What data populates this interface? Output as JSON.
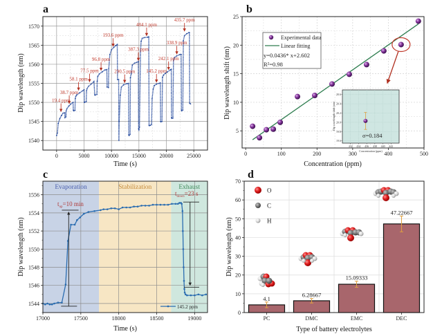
{
  "chart_data": [
    {
      "id": "a",
      "type": "line",
      "panel_label": "a",
      "xlabel": "Time (s)",
      "ylabel": "Dip wavelength (nm)",
      "xlim": [
        -2500,
        27500
      ],
      "ylim": [
        1537.5,
        1572.5
      ],
      "xticks": [
        0,
        5000,
        10000,
        15000,
        20000,
        25000
      ],
      "yticks": [
        1540,
        1545,
        1550,
        1555,
        1560,
        1565,
        1570
      ],
      "grid": true,
      "line_color": "#2b4fa0",
      "annotation_color": "#c0392b",
      "series": [
        {
          "name": "dip wavelength",
          "x": [
            0,
            150,
            300,
            600,
            900,
            1200,
            1500,
            1520,
            1700,
            1750,
            1900,
            2200,
            2600,
            3000,
            3050,
            3100,
            3350,
            3400,
            3500,
            3700,
            4200,
            4700,
            5000,
            5050,
            5100,
            5400,
            5450,
            5550,
            5800,
            6300,
            6800,
            6950,
            7000,
            7350,
            7400,
            7500,
            7800,
            8300,
            8800,
            9150,
            9200,
            9450,
            9500,
            9700,
            10000,
            10400,
            10800,
            11050,
            11100,
            11300,
            11350,
            11400,
            11600,
            11800,
            12200,
            12800,
            13100,
            13150,
            13200,
            13400,
            13450,
            13600,
            13800,
            14200,
            14600,
            14900,
            14950,
            15000,
            15100,
            15300,
            15400,
            15600,
            16000,
            16600,
            16800,
            16850,
            16900,
            17100,
            17300,
            17400,
            17600,
            17800,
            18200,
            18700,
            18900,
            18950,
            19000,
            19200,
            19300,
            19500,
            19800,
            20200,
            20700,
            20900,
            20950,
            21000,
            21200,
            21300,
            21500,
            21900,
            22400,
            22700,
            22750,
            22800,
            23000,
            23100,
            23300,
            23700,
            24100,
            24200,
            24250,
            24400
          ],
          "y": [
            1541.3,
            1542.0,
            1544.5,
            1545.8,
            1546.6,
            1547.2,
            1547.3,
            1546.0,
            1546.2,
            1547.8,
            1548.4,
            1549.0,
            1549.6,
            1550.0,
            1548.0,
            1547.8,
            1547.9,
            1551.0,
            1551.6,
            1552.0,
            1552.5,
            1553.0,
            1553.3,
            1550.0,
            1550.0,
            1550.2,
            1553.0,
            1553.6,
            1554.2,
            1554.8,
            1555.5,
            1552.0,
            1551.9,
            1552.1,
            1555.5,
            1556.8,
            1557.5,
            1558.0,
            1558.5,
            1558.6,
            1554.0,
            1553.9,
            1558.8,
            1562.5,
            1563.8,
            1564.4,
            1564.9,
            1565.2,
            1556.0,
            1556.0,
            1540.0,
            1545.0,
            1551.8,
            1554.0,
            1554.6,
            1554.9,
            1555.0,
            1541.5,
            1541.3,
            1541.6,
            1556.5,
            1557.5,
            1559.8,
            1560.3,
            1560.5,
            1560.7,
            1543.0,
            1542.8,
            1543.5,
            1563.5,
            1566.0,
            1566.8,
            1567.0,
            1567.1,
            1567.2,
            1544.0,
            1543.9,
            1544.0,
            1544.2,
            1551.0,
            1553.5,
            1554.4,
            1554.8,
            1555.0,
            1555.1,
            1545.0,
            1544.9,
            1545.0,
            1556.6,
            1557.2,
            1557.6,
            1558.0,
            1558.5,
            1558.7,
            1546.0,
            1545.8,
            1545.9,
            1561.0,
            1561.8,
            1562.2,
            1562.5,
            1562.6,
            1548.0,
            1547.8,
            1548.0,
            1566.2,
            1567.5,
            1568.0,
            1568.3,
            1568.3,
            1549.8,
            1549.6
          ]
        }
      ],
      "annotations": [
        {
          "text": "19.4 ppm",
          "x": 800,
          "y": 1547.2
        },
        {
          "text": "38.7 ppm",
          "x": 2300,
          "y": 1549.3
        },
        {
          "text": "58.1 ppm",
          "x": 4000,
          "y": 1552.8
        },
        {
          "text": "77.5 ppm",
          "x": 6000,
          "y": 1555.0
        },
        {
          "text": "96.8 ppm",
          "x": 8100,
          "y": 1558.0
        },
        {
          "text": "193.6 ppm",
          "x": 10300,
          "y": 1564.3
        },
        {
          "text": "290.5 ppm",
          "x": 12400,
          "y": 1554.8
        },
        {
          "text": "387.3 ppm",
          "x": 14900,
          "y": 1560.6
        },
        {
          "text": "484.1 ppm",
          "x": 16400,
          "y": 1567.1
        },
        {
          "text": "145.2 ppm",
          "x": 18200,
          "y": 1554.9
        },
        {
          "text": "242.1 ppm",
          "x": 20400,
          "y": 1558.2
        },
        {
          "text": "338.9 ppm",
          "x": 21900,
          "y": 1562.3
        },
        {
          "text": "435.7 ppm",
          "x": 23300,
          "y": 1568.3
        }
      ]
    },
    {
      "id": "b",
      "type": "scatter",
      "panel_label": "b",
      "xlabel": "Concentration (ppm)",
      "ylabel": "Dip wavelength shift (nm)",
      "xlim": [
        -10,
        500
      ],
      "ylim": [
        2,
        25
      ],
      "xticks": [
        0,
        100,
        200,
        300,
        400,
        500
      ],
      "yticks": [
        5,
        10,
        15,
        20,
        25
      ],
      "grid": true,
      "legend_position": "top-left",
      "legend": [
        "Experimental data",
        "Linear fitting"
      ],
      "fit_equation": "y=0.0436* x+2.602",
      "r_squared": "R²=0.98",
      "fit": {
        "slope": 0.0436,
        "intercept": 2.602,
        "x_range": [
          19.4,
          484.1
        ],
        "color": "#2e7d4f"
      },
      "point_color": "#7b2a8c",
      "series": [
        {
          "name": "Experimental data",
          "x": [
            19.4,
            38.7,
            58.1,
            77.5,
            96.8,
            145.2,
            193.6,
            242.1,
            290.5,
            338.9,
            387.3,
            435.7,
            484.1
          ],
          "y": [
            5.8,
            3.8,
            5.2,
            5.3,
            6.5,
            11.0,
            11.2,
            13.2,
            14.9,
            16.6,
            19.0,
            20.1,
            24.2
          ]
        }
      ],
      "highlight": {
        "x": 435.7,
        "y": 20.1,
        "color": "#c0392b"
      },
      "inset": {
        "xlabel": "Concentration (ppm)",
        "ylabel": "Dip wavelength shift (nm)",
        "xticks": [
          432,
          434,
          436,
          438,
          440,
          442
        ],
        "yticks": [
          19.6,
          19.8,
          20.0,
          20.2,
          20.4,
          20.6
        ],
        "xlim": [
          430,
          444
        ],
        "ylim": [
          19.55,
          20.7
        ],
        "point": {
          "x": 435.7,
          "y": 20.03,
          "error": 0.184
        },
        "sigma_label": "σ=0.184",
        "background": "#cfe6e2"
      }
    },
    {
      "id": "c",
      "type": "line",
      "panel_label": "c",
      "xlabel": "Time (s)",
      "ylabel": "Dip wavelength (nm)",
      "xlim": [
        17000,
        19170
      ],
      "ylim": [
        1543.0,
        1557.5
      ],
      "xticks": [
        17000,
        17500,
        18000,
        18500,
        19000
      ],
      "yticks": [
        1544,
        1546,
        1548,
        1550,
        1552,
        1554,
        1556
      ],
      "grid": true,
      "legend_position": "bottom-right",
      "legend": [
        "145.2 ppm"
      ],
      "line_color": "#2a6cb0",
      "regions": [
        {
          "label": "Evaporation",
          "x0": 17000,
          "x1": 17740,
          "color": "#c8d3e6",
          "text_color": "#4a5fae"
        },
        {
          "label": "Stabilization",
          "x0": 17740,
          "x1": 18690,
          "color": "#f7e6c4",
          "text_color": "#c58a3a"
        },
        {
          "label": "Exhaust",
          "x0": 18690,
          "x1": 19170,
          "color": "#cfe7de",
          "text_color": "#3e8a5a"
        }
      ],
      "annotations": [
        {
          "text": "t_up=10 min",
          "main": "t",
          "sub": "up",
          "rest": "=10 min"
        },
        {
          "text": "t_down=23 s",
          "main": "t",
          "sub": "down",
          "rest": "=23 s"
        }
      ],
      "series": [
        {
          "name": "145.2 ppm",
          "x": [
            17000,
            17030,
            17060,
            17090,
            17120,
            17150,
            17200,
            17250,
            17300,
            17330,
            17370,
            17420,
            17450,
            17490,
            17540,
            17600,
            17680,
            17760,
            17800,
            17850,
            17900,
            17950,
            18000,
            18050,
            18100,
            18150,
            18200,
            18250,
            18300,
            18350,
            18400,
            18450,
            18500,
            18550,
            18600,
            18650,
            18700,
            18750,
            18780,
            18800,
            18820,
            18830,
            18840,
            18845,
            18850,
            18855,
            18860,
            18865,
            18870,
            18880,
            18900,
            18950,
            19000,
            19050,
            19100,
            19150
          ],
          "y": [
            1544.0,
            1543.9,
            1544.0,
            1543.9,
            1543.9,
            1544.0,
            1544.1,
            1544.1,
            1546.1,
            1550.9,
            1552.7,
            1552.7,
            1553.2,
            1553.5,
            1553.9,
            1554.1,
            1554.2,
            1554.3,
            1554.4,
            1554.4,
            1554.5,
            1554.5,
            1554.4,
            1554.6,
            1554.6,
            1554.6,
            1554.7,
            1554.7,
            1554.8,
            1554.8,
            1554.8,
            1554.9,
            1554.9,
            1554.9,
            1554.9,
            1554.9,
            1555.0,
            1555.0,
            1555.0,
            1555.1,
            1555.1,
            1555.0,
            1554.2,
            1552.0,
            1550.0,
            1548.0,
            1546.5,
            1545.6,
            1545.2,
            1545.0,
            1544.9,
            1544.9,
            1544.9,
            1545.0,
            1544.9,
            1545.0
          ]
        }
      ]
    },
    {
      "id": "d",
      "type": "bar",
      "panel_label": "d",
      "xlabel": "Type of battery electrolytes",
      "ylabel": "Dip wavelength (nm)",
      "ylim": [
        0,
        70
      ],
      "yticks": [
        0,
        10,
        20,
        30,
        40,
        50,
        60,
        70
      ],
      "grid": true,
      "bar_color": "#a8666c",
      "error_color": "#e0a040",
      "categories": [
        "PC",
        "DMC",
        "EMC",
        "DEC"
      ],
      "values": [
        4.1,
        6.28667,
        15.09333,
        47.22667
      ],
      "value_labels": [
        "4.1",
        "6.28667",
        "15.09333",
        "47.22667"
      ],
      "errors": [
        1.5,
        1.2,
        1.6,
        4.2
      ],
      "legend_position": "top-left",
      "legend": [
        {
          "label": "O",
          "color": "#e02020"
        },
        {
          "label": "C",
          "color": "#777777"
        },
        {
          "label": "H",
          "color": "#d6d6d6"
        }
      ]
    }
  ]
}
